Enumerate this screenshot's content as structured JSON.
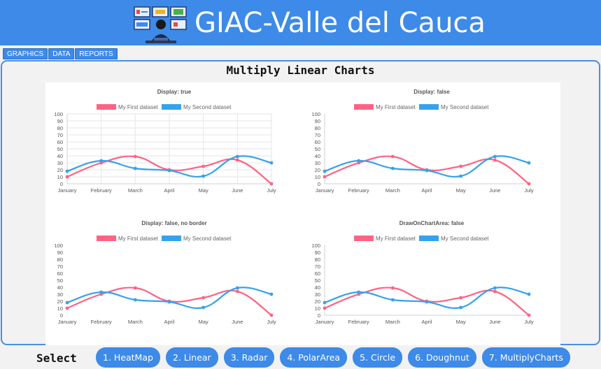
{
  "app": {
    "title": "GIAC-Valle del Cauca"
  },
  "nav": {
    "tabs": [
      "GRAPHICS",
      "DATA",
      "REPORTS"
    ]
  },
  "panel": {
    "title": "Multiply Linear Charts"
  },
  "footer": {
    "select_label": "Select",
    "buttons": [
      "1. HeatMap",
      "2. Linear",
      "3. Radar",
      "4. PolarArea",
      "5. Circle",
      "6. Doughnut",
      "7. MultiplyCharts"
    ]
  },
  "colors": {
    "accent": "#3d8ae8",
    "series1": "#ff6384",
    "series2": "#36a2eb"
  },
  "chart_data": [
    {
      "type": "line",
      "title": "Display: true",
      "grid": true,
      "border": true,
      "categories": [
        "January",
        "February",
        "March",
        "April",
        "May",
        "June",
        "July"
      ],
      "series": [
        {
          "name": "My First dataset",
          "values": [
            10,
            30,
            39,
            20,
            25,
            34,
            0
          ]
        },
        {
          "name": "My Second dataset",
          "values": [
            18,
            33,
            22,
            19,
            11,
            39,
            30
          ]
        }
      ],
      "ylim": [
        0,
        100
      ],
      "yticks": [
        0,
        10,
        20,
        30,
        40,
        50,
        60,
        70,
        80,
        90,
        100
      ],
      "legend": "top"
    },
    {
      "type": "line",
      "title": "Display: false",
      "grid": false,
      "border": true,
      "categories": [
        "January",
        "February",
        "March",
        "April",
        "May",
        "June",
        "July"
      ],
      "series": [
        {
          "name": "My First dataset",
          "values": [
            10,
            30,
            39,
            20,
            25,
            34,
            0
          ]
        },
        {
          "name": "My Second dataset",
          "values": [
            18,
            33,
            22,
            19,
            11,
            39,
            30
          ]
        }
      ],
      "ylim": [
        0,
        100
      ],
      "yticks": [
        0,
        10,
        20,
        30,
        40,
        50,
        60,
        70,
        80,
        90,
        100
      ],
      "legend": "top"
    },
    {
      "type": "line",
      "title": "Display: false, no border",
      "grid": false,
      "border": false,
      "categories": [
        "January",
        "February",
        "March",
        "April",
        "May",
        "June",
        "July"
      ],
      "series": [
        {
          "name": "My First dataset",
          "values": [
            10,
            30,
            39,
            20,
            25,
            34,
            0
          ]
        },
        {
          "name": "My Second dataset",
          "values": [
            18,
            33,
            22,
            19,
            11,
            39,
            30
          ]
        }
      ],
      "ylim": [
        0,
        100
      ],
      "yticks": [
        0,
        10,
        20,
        30,
        40,
        50,
        60,
        70,
        80,
        90,
        100
      ],
      "legend": "top"
    },
    {
      "type": "line",
      "title": "DrawOnChartArea: false",
      "grid": false,
      "border": true,
      "categories": [
        "January",
        "February",
        "March",
        "April",
        "May",
        "June",
        "July"
      ],
      "series": [
        {
          "name": "My First dataset",
          "values": [
            10,
            30,
            39,
            20,
            25,
            34,
            0
          ]
        },
        {
          "name": "My Second dataset",
          "values": [
            18,
            33,
            22,
            19,
            11,
            39,
            30
          ]
        }
      ],
      "ylim": [
        0,
        100
      ],
      "yticks": [
        0,
        10,
        20,
        30,
        40,
        50,
        60,
        70,
        80,
        90,
        100
      ],
      "legend": "top"
    }
  ]
}
